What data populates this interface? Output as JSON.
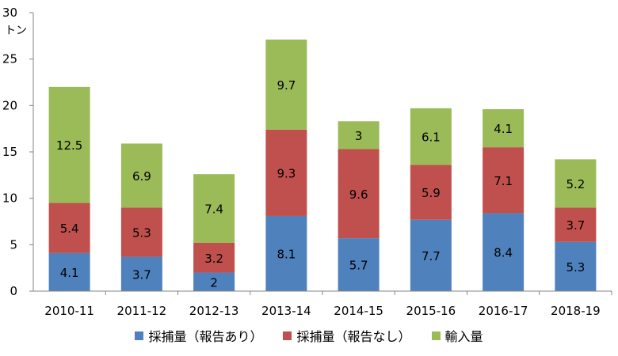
{
  "chart_data": {
    "type": "bar",
    "stacked": true,
    "categories": [
      "2010-11",
      "2011-12",
      "2012-13",
      "2013-14",
      "2014-15",
      "2015-16",
      "2016-17",
      "2018-19"
    ],
    "series": [
      {
        "name": "採捕量（報告あり）",
        "color": "#4f81bd",
        "values": [
          4.1,
          3.7,
          2,
          8.1,
          5.7,
          7.7,
          8.4,
          5.3
        ]
      },
      {
        "name": "採捕量（報告なし）",
        "color": "#c0504d",
        "values": [
          5.4,
          5.3,
          3.2,
          9.3,
          9.6,
          5.9,
          7.1,
          3.7
        ]
      },
      {
        "name": "輸入量",
        "color": "#9bbb59",
        "values": [
          12.5,
          6.9,
          7.4,
          9.7,
          3,
          6.1,
          4.1,
          5.2
        ]
      }
    ],
    "y_unit": "トン",
    "ylim": [
      0,
      30
    ],
    "yticks": [
      0,
      5,
      10,
      15,
      20,
      25,
      30
    ],
    "grid": false,
    "legend_position": "bottom"
  }
}
